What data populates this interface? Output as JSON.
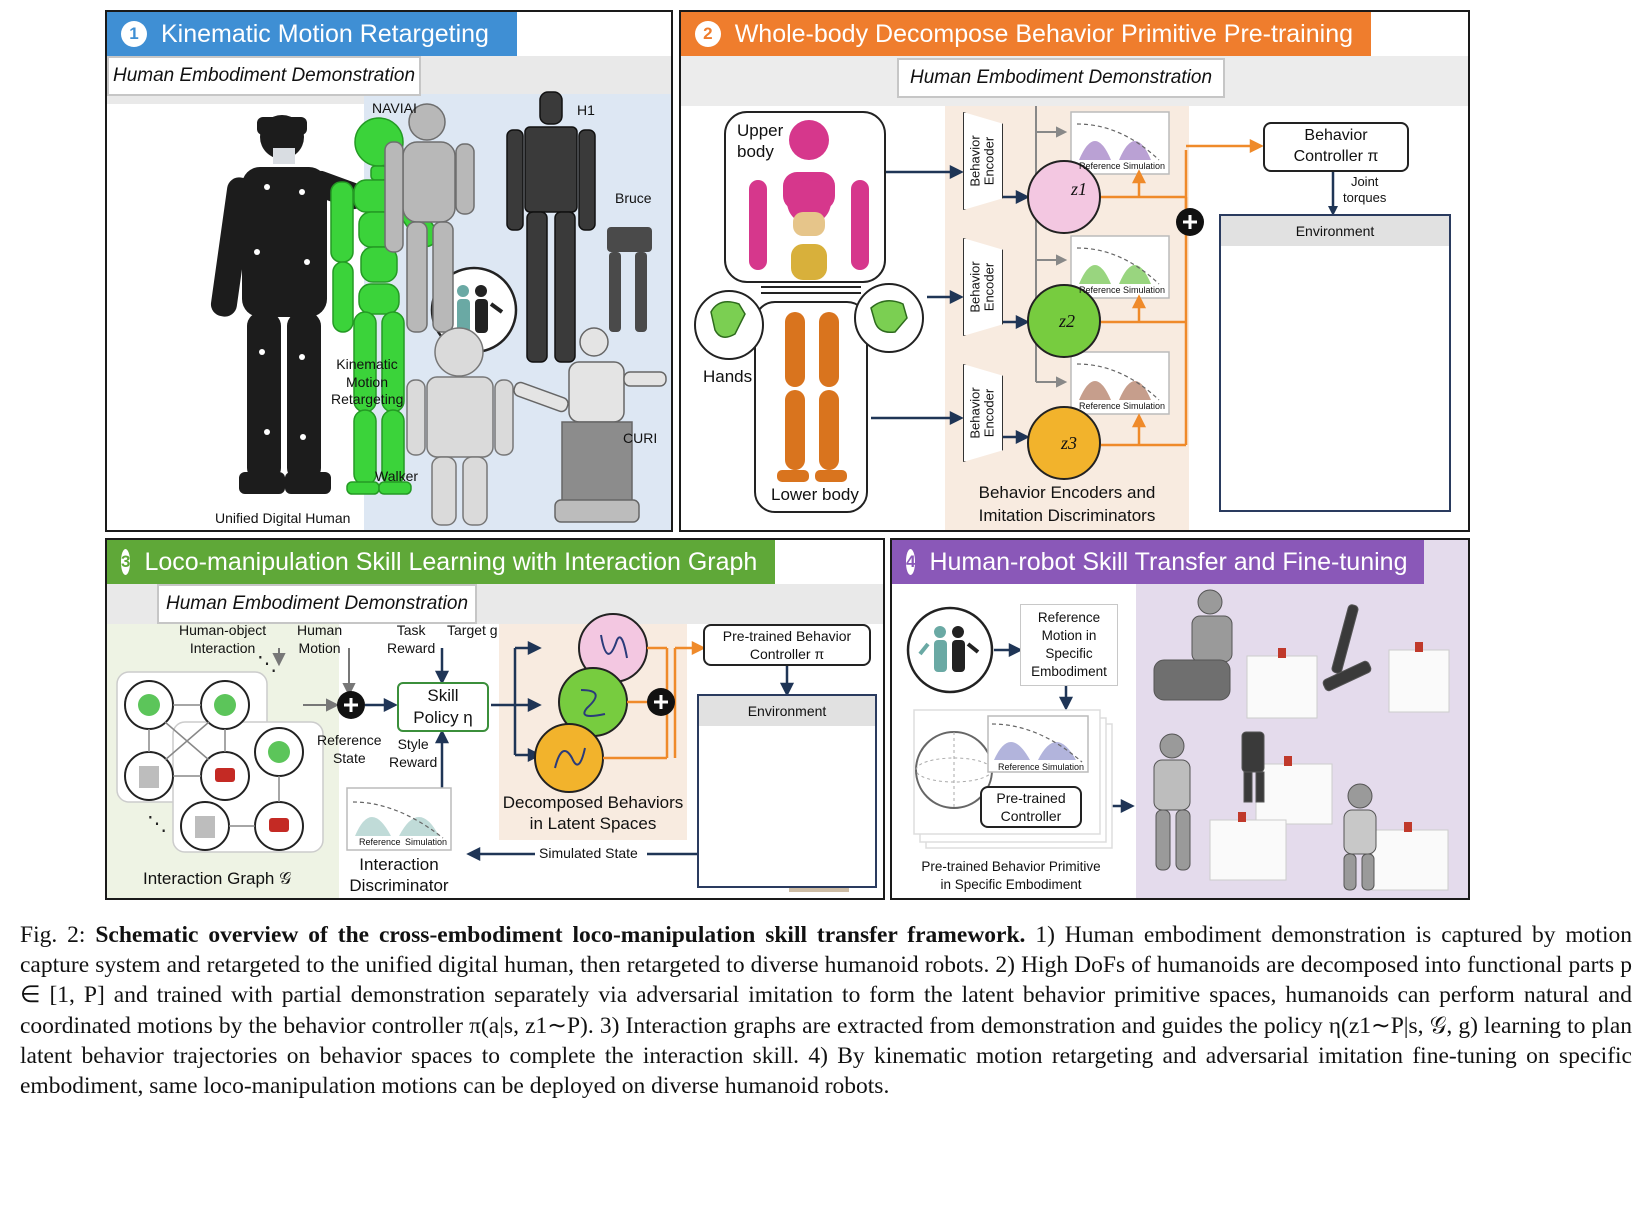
{
  "panel1": {
    "number": "1",
    "title": "Kinematic Motion Retargeting",
    "demo_label": "Human Embodiment Demonstration",
    "unified_label": "Unified Digital Human",
    "retarget_label": "Kinematic\nMotion\nRetargeting",
    "robots": [
      "NAVIAI",
      "H1",
      "Bruce",
      "Walker",
      "CURI"
    ]
  },
  "panel2": {
    "number": "2",
    "title": "Whole-body Decompose Behavior Primitive Pre-training",
    "demo_label": "Human Embodiment Demonstration",
    "upper_body": "Upper\nbody",
    "hands": "Hands",
    "lower_body": "Lower body",
    "encoder_label": "Behavior\nEncoder",
    "latents": [
      "z1",
      "z2",
      "z3"
    ],
    "ref_label": "Reference",
    "sim_label": "Simulation",
    "encoders_caption": "Behavior Encoders and\nImitation Discriminators",
    "controller": "Behavior\nController π",
    "joint_torques": "Joint\ntorques",
    "environment": "Environment"
  },
  "panel3": {
    "number": "3",
    "title": "Loco-manipulation Skill Learning with Interaction Graph",
    "demo_label": "Human Embodiment Demonstration",
    "human_object": "Human-object\nInteraction",
    "human_motion": "Human\nMotion",
    "task_reward": "Task\nReward",
    "target": "Target g",
    "skill_policy": "Skill\nPolicy η",
    "reference_state": "Reference\nState",
    "style_reward": "Style\nReward",
    "pretrained_controller": "Pre-trained Behavior\nController π",
    "environment": "Environment",
    "decomposed": "Decomposed Behaviors\nin Latent Spaces",
    "simulated_state": "Simulated State",
    "interaction_disc": "Interaction\nDiscriminator",
    "interaction_graph": "Interaction Graph 𝒢",
    "ref_label": "Reference",
    "sim_label": "Simulation",
    "graph_weights": [
      "0",
      "0",
      "0",
      "1",
      "1",
      "0",
      "0"
    ]
  },
  "panel4": {
    "number": "4",
    "title": "Human-robot Skill Transfer and Fine-tuning",
    "reference_motion": "Reference\nMotion in\nSpecific\nEmbodiment",
    "pretrained_controller": "Pre-trained\nController",
    "ref_label": "Reference",
    "sim_label": "Simulation",
    "primitive_caption": "Pre-trained Behavior Primitive\nin Specific Embodiment"
  },
  "caption": {
    "prefix": "Fig. 2:",
    "bold": "Schematic overview of the cross-embodiment loco-manipulation skill transfer framework.",
    "rest": "1) Human embodiment demonstration is captured by motion capture system and retargeted to the unified digital human, then retargeted to diverse humanoid robots. 2) High DoFs of humanoids are decomposed into functional parts p ∈ [1, P] and trained with partial demonstration separately via adversarial imitation to form the latent behavior primitive spaces, humanoids can perform natural and coordinated motions by the behavior controller π(a|s, z1∼P). 3) Interaction graphs are extracted from demonstration and guides the policy η(z1∼P|s, 𝒢, g) learning to plan latent behavior trajectories on behavior spaces to complete the interaction skill. 4) By kinematic motion retargeting and adversarial imitation fine-tuning on specific embodiment, same loco-manipulation motions can be deployed on diverse humanoid robots."
  },
  "colors": {
    "panel1_title": "#3f8fd4",
    "panel2_title": "#ef7d2d",
    "panel3_title": "#5fa838",
    "panel4_title": "#8a58b8",
    "upper_body": "#d6378c",
    "lower_body": "#d9741e",
    "z1": "#f3c7e1",
    "z2": "#77cc3f",
    "z3": "#f2b32c"
  }
}
